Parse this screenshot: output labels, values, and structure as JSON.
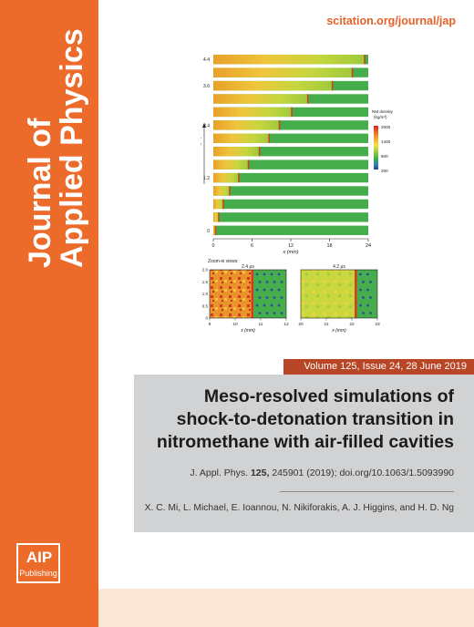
{
  "journal": {
    "title_line1": "Journal of",
    "title_line2": "Applied Physics",
    "url": "scitation.org/journal/jap"
  },
  "publisher": {
    "logo_text": "AIP",
    "logo_sub": "Publishing"
  },
  "issue": {
    "volume_line": "Volume 125, Issue 24, 28 June 2019"
  },
  "article": {
    "title": "Meso-resolved simulations of shock-to-detonation transition in nitromethane with air-filled cavities",
    "citation_prefix": "J. Appl. Phys.",
    "citation_volume": "125,",
    "citation_rest": "245901 (2019); doi.org/10.1063/1.5093990",
    "authors": "X. C. Mi, L. Michael, E. Ioannou, N. Nikiforakis, A. J. Higgins, and H. D. Ng"
  },
  "colors": {
    "spine": "#ec6a2a",
    "volume_bar": "#b84526",
    "article_panel": "#d1d2d3",
    "url": "#e4622a"
  },
  "chart_data": [
    {
      "type": "heatmap",
      "title": "",
      "xlabel": "x (mm)",
      "ylabel": "Time (μs)",
      "xlim": [
        0,
        24
      ],
      "x_ticks": [
        "0",
        "12",
        "24"
      ],
      "x_ticks_minor": [
        "6",
        "18"
      ],
      "y_ticks": [
        "0",
        "1.2",
        "2.4",
        "3.6",
        "4.4"
      ],
      "colorbar": {
        "title": "NM density",
        "unit": "(kg/m³)",
        "ticks": [
          "2000",
          "1400",
          "800",
          "200"
        ]
      },
      "front_positions_mm": [
        0.4,
        0.9,
        1.6,
        2.6,
        4.0,
        5.5,
        7.2,
        8.7,
        10.3,
        12.2,
        14.7,
        18.5,
        21.6,
        23.5
      ],
      "legend_label": "Zoom-in views:"
    },
    {
      "type": "heatmap",
      "title": "2.4 μs",
      "xlabel": "x (mm)",
      "ylabel": "y (mm)",
      "xlim": [
        9,
        12
      ],
      "x_ticks": [
        "9",
        "10",
        "11",
        "12"
      ],
      "y_ticks": [
        "0",
        "0.5",
        "1.0",
        "1.5",
        "2.0"
      ]
    },
    {
      "type": "heatmap",
      "title": "4.2 μs",
      "xlabel": "x (mm)",
      "ylabel": "",
      "xlim": [
        20,
        23
      ],
      "x_ticks": [
        "20",
        "21",
        "22",
        "23"
      ]
    }
  ]
}
